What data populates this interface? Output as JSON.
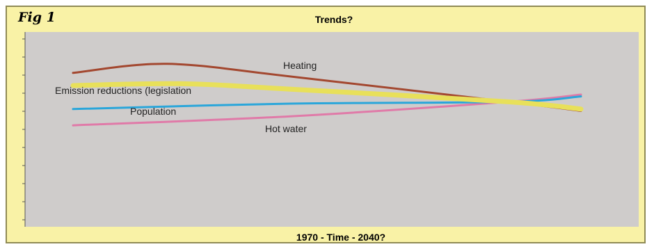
{
  "figure_label": "Fig 1",
  "chart_data": {
    "type": "line",
    "title": "Trends?",
    "xlabel": "1970 - Time - 2040?",
    "ylabel": "",
    "xlim": [
      1970,
      2040
    ],
    "ylim": [
      0,
      10
    ],
    "grid": false,
    "background": "#cfcccb",
    "frame_color": "#f9f2a6",
    "series": [
      {
        "name": "Heating",
        "color": "#a3472f",
        "x": [
          1970,
          1983,
          2000,
          2030,
          2040
        ],
        "values": [
          8.2,
          8.7,
          8.0,
          6.6,
          6.1
        ]
      },
      {
        "name": "Emission reductions (legislation",
        "color": "#e8e05a",
        "x": [
          1970,
          1985,
          2000,
          2030,
          2040
        ],
        "values": [
          7.5,
          7.6,
          7.3,
          6.6,
          6.2
        ]
      },
      {
        "name": "Population",
        "color": "#2aa6da",
        "x": [
          1970,
          2000,
          2030,
          2040
        ],
        "values": [
          6.2,
          6.5,
          6.6,
          6.9
        ]
      },
      {
        "name": "Hot water",
        "color": "#e07aa8",
        "x": [
          1970,
          2000,
          2030,
          2040
        ],
        "values": [
          5.3,
          5.8,
          6.6,
          7.0
        ]
      }
    ]
  }
}
